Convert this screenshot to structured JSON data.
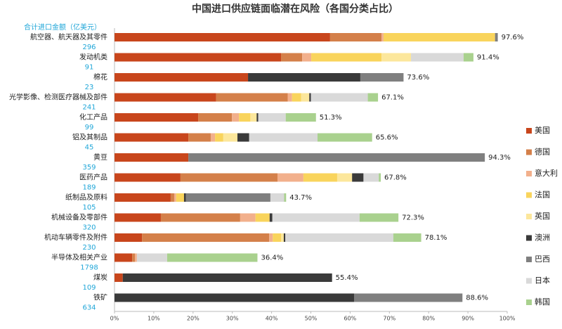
{
  "chart_data": {
    "type": "stacked-bar-horizontal",
    "title": "中国进口供应链面临潜在风险（各国分类占比）",
    "amount_header": "合计进口金额（亿美元）",
    "categories": [
      "航空器、航天器及其零件",
      "发动机类",
      "棉花",
      "光学影像、检测医疗器械及部件",
      "化工产品",
      "铝及其制品",
      "黄豆",
      "医药产品",
      "纸制品及原料",
      "机械设备及零部件",
      "机动车辆零件及附件",
      "半导体及相关产业",
      "煤炭",
      "铁矿"
    ],
    "amounts": [
      296,
      91,
      23,
      241,
      99,
      45,
      359,
      189,
      105,
      320,
      230,
      1798,
      109,
      634
    ],
    "totals": [
      97.6,
      91.4,
      73.6,
      67.1,
      51.3,
      65.6,
      94.3,
      67.8,
      43.7,
      72.3,
      78.1,
      36.4,
      55.4,
      88.6
    ],
    "total_labels": [
      "97.6%",
      "91.4%",
      "73.6%",
      "67.1%",
      "51.3%",
      "65.6%",
      "94.3%",
      "67.8%",
      "43.7%",
      "72.3%",
      "78.1%",
      "36.4%",
      "55.4%",
      "88.6%"
    ],
    "series": [
      {
        "name": "美国",
        "color": "#c8461c",
        "values": [
          54.9,
          42.4,
          34.0,
          25.9,
          21.3,
          18.8,
          18.8,
          16.8,
          14.3,
          11.8,
          7.0,
          4.5,
          2.1,
          0
        ]
      },
      {
        "name": "德国",
        "color": "#d4804a",
        "values": [
          13.1,
          5.4,
          0,
          18.2,
          8.6,
          5.7,
          0,
          24.7,
          0.9,
          20.2,
          32.4,
          0.7,
          0,
          0
        ]
      },
      {
        "name": "意大利",
        "color": "#f2b08c",
        "values": [
          0.5,
          2.3,
          0,
          1.1,
          1.8,
          1.1,
          0,
          6.6,
          0.5,
          3.9,
          0.9,
          0.5,
          0,
          0
        ]
      },
      {
        "name": "法国",
        "color": "#f9d45c",
        "values": [
          28.4,
          17.9,
          0,
          2.3,
          2.9,
          2.1,
          0,
          8.6,
          2.0,
          3.6,
          2.1,
          0,
          0,
          0
        ]
      },
      {
        "name": "英国",
        "color": "#fce79c",
        "values": [
          0,
          7.5,
          0,
          2.1,
          1.6,
          3.6,
          0,
          3.8,
          0,
          0,
          0.7,
          0,
          0,
          0
        ]
      },
      {
        "name": "澳洲",
        "color": "#3a3a3a",
        "values": [
          0,
          0,
          28.6,
          0.4,
          0.4,
          3.0,
          0,
          2.9,
          0.5,
          0.7,
          0.4,
          0,
          53.3,
          61.0
        ]
      },
      {
        "name": "巴西",
        "color": "#7f7f7f",
        "values": [
          0.7,
          0,
          11.0,
          0,
          0,
          0,
          75.5,
          0,
          21.5,
          0,
          0,
          0,
          0,
          27.6
        ]
      },
      {
        "name": "日本",
        "color": "#d9d9d9",
        "values": [
          0,
          13.4,
          0,
          14.5,
          7.0,
          17.4,
          0,
          3.9,
          3.5,
          22.2,
          27.5,
          7.7,
          0,
          0
        ]
      },
      {
        "name": "韩国",
        "color": "#a9d18e",
        "values": [
          0,
          2.5,
          0,
          2.6,
          7.7,
          13.9,
          0,
          0.5,
          0.5,
          9.9,
          7.1,
          23.0,
          0,
          0
        ]
      }
    ],
    "xlim": [
      0,
      100
    ],
    "xticks": [
      {
        "value": 0,
        "label": "0%"
      },
      {
        "value": 10,
        "label": "10%"
      },
      {
        "value": 20,
        "label": "20%"
      },
      {
        "value": 30,
        "label": "30%"
      },
      {
        "value": 40,
        "label": "40%"
      },
      {
        "value": 50,
        "label": "50%"
      },
      {
        "value": 60,
        "label": "60%"
      },
      {
        "value": 70,
        "label": "70%"
      },
      {
        "value": 80,
        "label": "80%"
      },
      {
        "value": 90,
        "label": "90%"
      },
      {
        "value": 100,
        "label": "100%"
      }
    ],
    "legend": "right"
  }
}
